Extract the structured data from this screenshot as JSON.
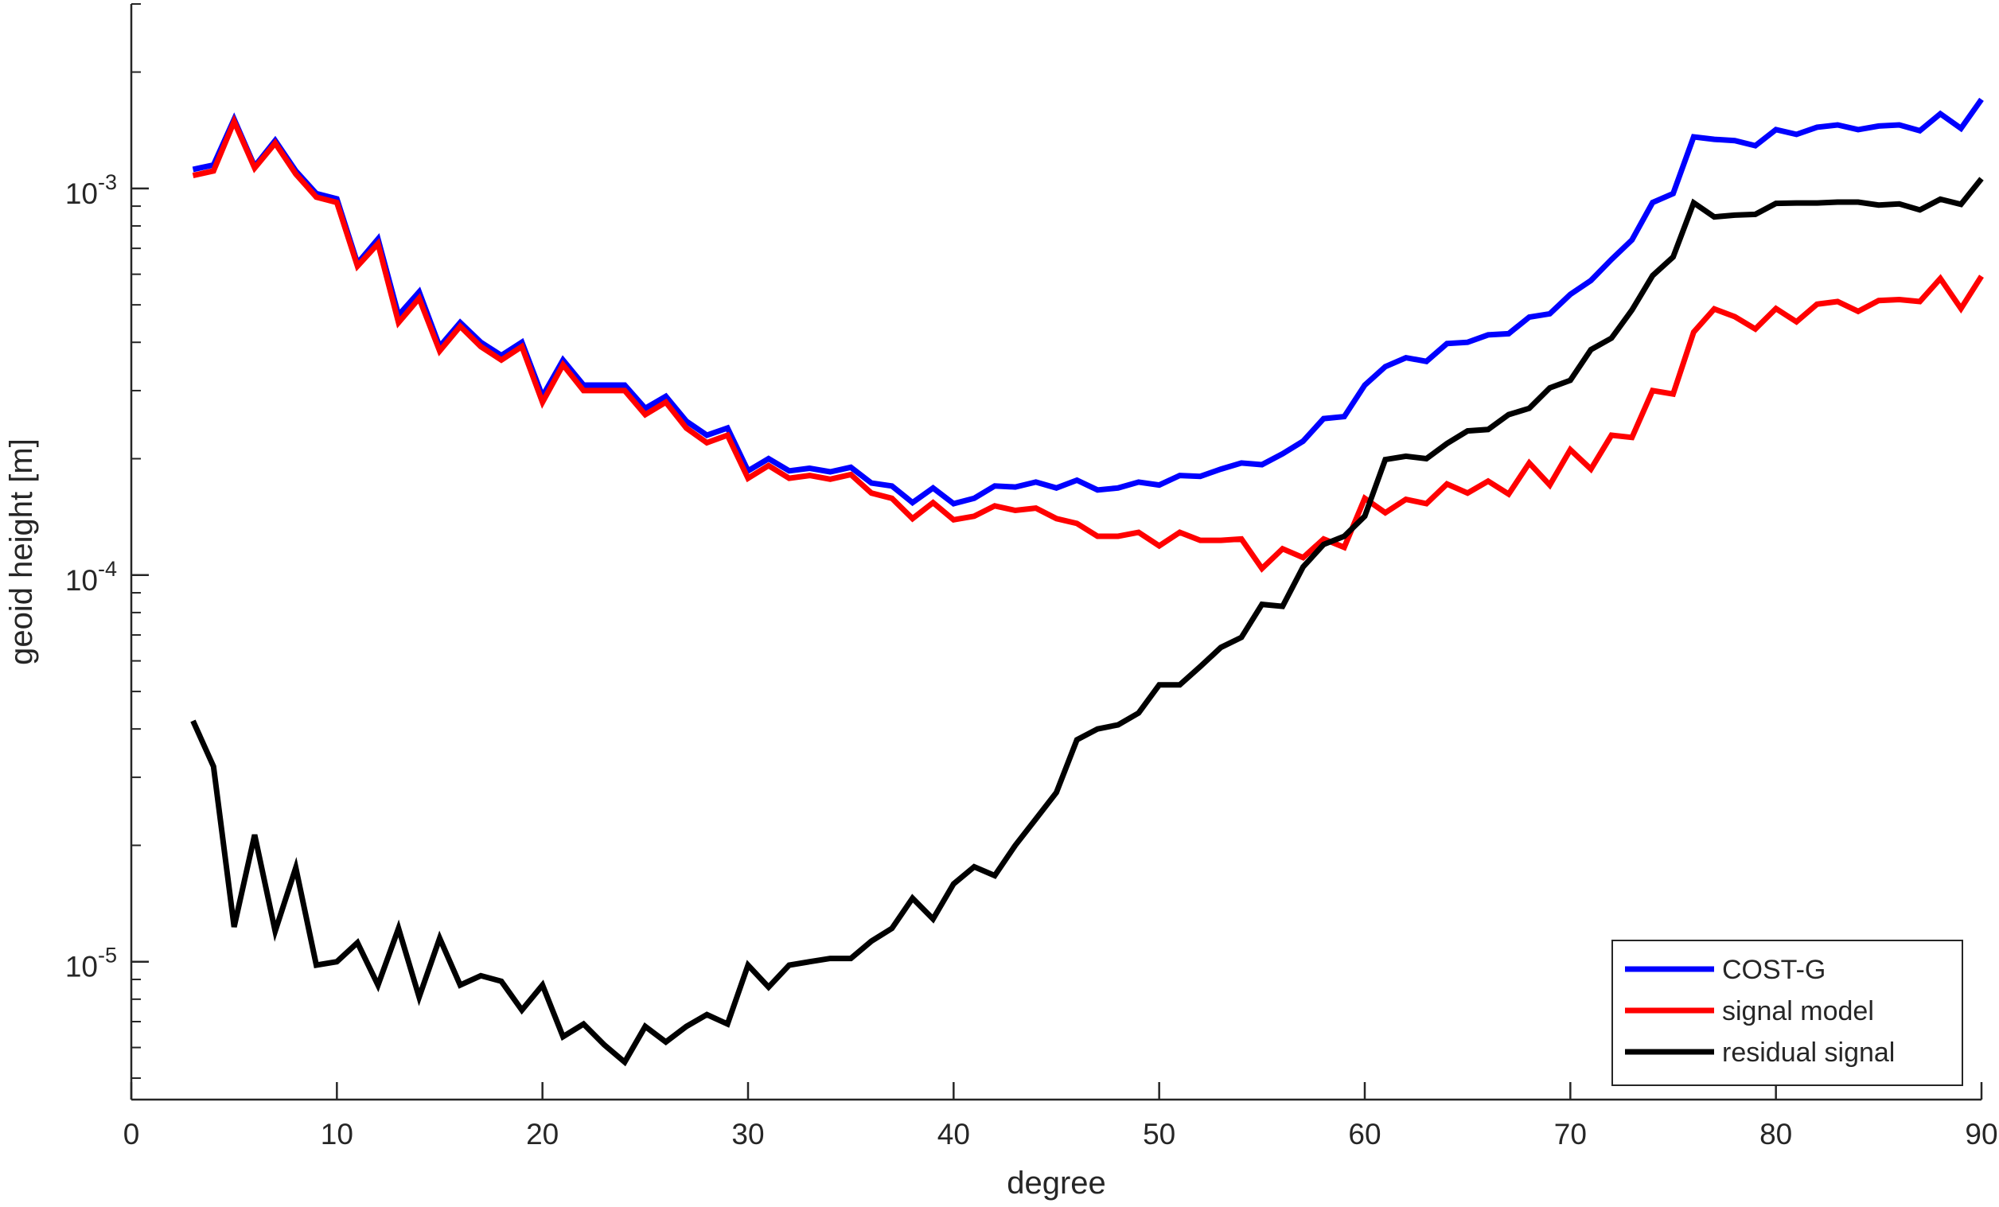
{
  "chart_data": {
    "type": "line",
    "title": "",
    "xlabel": "degree",
    "ylabel": "geoid height [m]",
    "xlim": [
      0,
      90
    ],
    "ylim": [
      4.4e-06,
      0.003
    ],
    "yscale": "log",
    "grid": false,
    "legend_position": "bottom-right",
    "x_ticks": [
      {
        "value": 0,
        "label": "0"
      },
      {
        "value": 10,
        "label": "10"
      },
      {
        "value": 20,
        "label": "20"
      },
      {
        "value": 30,
        "label": "30"
      },
      {
        "value": 40,
        "label": "40"
      },
      {
        "value": 50,
        "label": "50"
      },
      {
        "value": 60,
        "label": "60"
      },
      {
        "value": 70,
        "label": "70"
      },
      {
        "value": 80,
        "label": "80"
      },
      {
        "value": 90,
        "label": "90"
      }
    ],
    "y_ticks": [
      {
        "value": 1e-05,
        "base": "10",
        "exponent": "-5"
      },
      {
        "value": 0.0001,
        "base": "10",
        "exponent": "-4"
      },
      {
        "value": 0.001,
        "base": "10",
        "exponent": "-3"
      }
    ],
    "x": [
      3,
      4,
      5,
      6,
      7,
      8,
      9,
      10,
      11,
      12,
      13,
      14,
      15,
      16,
      17,
      18,
      19,
      20,
      21,
      22,
      23,
      24,
      25,
      26,
      27,
      28,
      29,
      30,
      31,
      32,
      33,
      34,
      35,
      36,
      37,
      38,
      39,
      40,
      41,
      42,
      43,
      44,
      45,
      46,
      47,
      48,
      49,
      50,
      51,
      52,
      53,
      54,
      55,
      56,
      57,
      58,
      59,
      60,
      61,
      62,
      63,
      64,
      65,
      66,
      67,
      68,
      69,
      70,
      71,
      72,
      73,
      74,
      75,
      76,
      77,
      78,
      79,
      80,
      81,
      82,
      83,
      84,
      85,
      86,
      87,
      88,
      89,
      90
    ],
    "series": [
      {
        "name": "COST-G",
        "color": "#0000ff",
        "values": [
          0.00112,
          0.00115,
          0.00151,
          0.00114,
          0.00133,
          0.00111,
          0.00097,
          0.00094,
          0.00064,
          0.00074,
          0.00047,
          0.00054,
          0.00039,
          0.00045,
          0.0004,
          0.00037,
          0.0004,
          0.00029,
          0.00036,
          0.00031,
          0.00031,
          0.00031,
          0.00027,
          0.00029,
          0.00025,
          0.00023,
          0.00024,
          0.000186,
          0.0002,
          0.000186,
          0.000189,
          0.000185,
          0.00019,
          0.000173,
          0.00017,
          0.000154,
          0.000168,
          0.000153,
          0.000158,
          0.00017,
          0.000169,
          0.000174,
          0.000168,
          0.000176,
          0.000166,
          0.000168,
          0.000174,
          0.000171,
          0.000181,
          0.00018,
          0.000188,
          0.000195,
          0.000193,
          0.000206,
          0.000222,
          0.000254,
          0.000257,
          0.00031,
          0.000346,
          0.000365,
          0.000357,
          0.000397,
          0.0004,
          0.000418,
          0.000421,
          0.000465,
          0.000474,
          0.000532,
          0.000578,
          0.000655,
          0.000736,
          0.00092,
          0.00097,
          0.00136,
          0.00134,
          0.00133,
          0.00129,
          0.00142,
          0.00138,
          0.00144,
          0.00146,
          0.00142,
          0.00145,
          0.00146,
          0.00141,
          0.00156,
          0.00143,
          0.0017
        ]
      },
      {
        "name": "signal model",
        "color": "#ff0000",
        "values": [
          0.00108,
          0.00111,
          0.00149,
          0.00113,
          0.00131,
          0.00109,
          0.00095,
          0.00092,
          0.00063,
          0.00072,
          0.00045,
          0.00052,
          0.00038,
          0.00044,
          0.00039,
          0.00036,
          0.00039,
          0.00028,
          0.00035,
          0.0003,
          0.0003,
          0.0003,
          0.00026,
          0.00028,
          0.00024,
          0.00022,
          0.00023,
          0.000178,
          0.000192,
          0.000178,
          0.000181,
          0.000177,
          0.000182,
          0.000163,
          0.000158,
          0.00014,
          0.000154,
          0.000139,
          0.000142,
          0.000151,
          0.000147,
          0.000149,
          0.00014,
          0.000136,
          0.000126,
          0.000126,
          0.000129,
          0.000119,
          0.000129,
          0.000123,
          0.000123,
          0.000124,
          0.000104,
          0.000117,
          0.000111,
          0.000124,
          0.000118,
          0.000158,
          0.000145,
          0.000157,
          0.000153,
          0.000172,
          0.000163,
          0.000175,
          0.000162,
          0.000195,
          0.000171,
          0.000211,
          0.000188,
          0.00023,
          0.000227,
          0.0003,
          0.000294,
          0.000425,
          0.000488,
          0.000466,
          0.000433,
          0.000489,
          0.000452,
          0.000502,
          0.00051,
          0.000481,
          0.000513,
          0.000516,
          0.00051,
          0.000585,
          0.000489,
          0.000593
        ]
      },
      {
        "name": "residual signal",
        "color": "#000000",
        "values": [
          4.2e-05,
          3.2e-05,
          1.23e-05,
          2.13e-05,
          1.2e-05,
          1.75e-05,
          9.8e-06,
          1e-05,
          1.12e-05,
          8.7e-06,
          1.22e-05,
          8.1e-06,
          1.15e-05,
          8.7e-06,
          9.2e-06,
          8.9e-06,
          7.5e-06,
          8.7e-06,
          6.4e-06,
          6.9e-06,
          6.1e-06,
          5.5e-06,
          6.8e-06,
          6.2e-06,
          6.8e-06,
          7.3e-06,
          6.9e-06,
          9.8e-06,
          8.6e-06,
          9.8e-06,
          1e-05,
          1.02e-05,
          1.02e-05,
          1.13e-05,
          1.22e-05,
          1.46e-05,
          1.29e-05,
          1.59e-05,
          1.76e-05,
          1.67e-05,
          2e-05,
          2.34e-05,
          2.74e-05,
          3.75e-05,
          4e-05,
          4.1e-05,
          4.4e-05,
          5.2e-05,
          5.2e-05,
          5.8e-05,
          6.5e-05,
          6.9e-05,
          8.4e-05,
          8.3e-05,
          0.000105,
          0.00012,
          0.000126,
          0.000142,
          0.000199,
          0.000203,
          0.0002,
          0.000219,
          0.000236,
          0.000238,
          0.00026,
          0.00027,
          0.000305,
          0.000319,
          0.000383,
          0.00041,
          0.000485,
          0.000595,
          0.000665,
          0.000918,
          0.000844,
          0.000853,
          0.000857,
          0.000915,
          0.000917,
          0.000917,
          0.000922,
          0.000922,
          0.000906,
          0.000912,
          0.00088,
          0.000938,
          0.00091,
          0.00106
        ]
      }
    ]
  }
}
